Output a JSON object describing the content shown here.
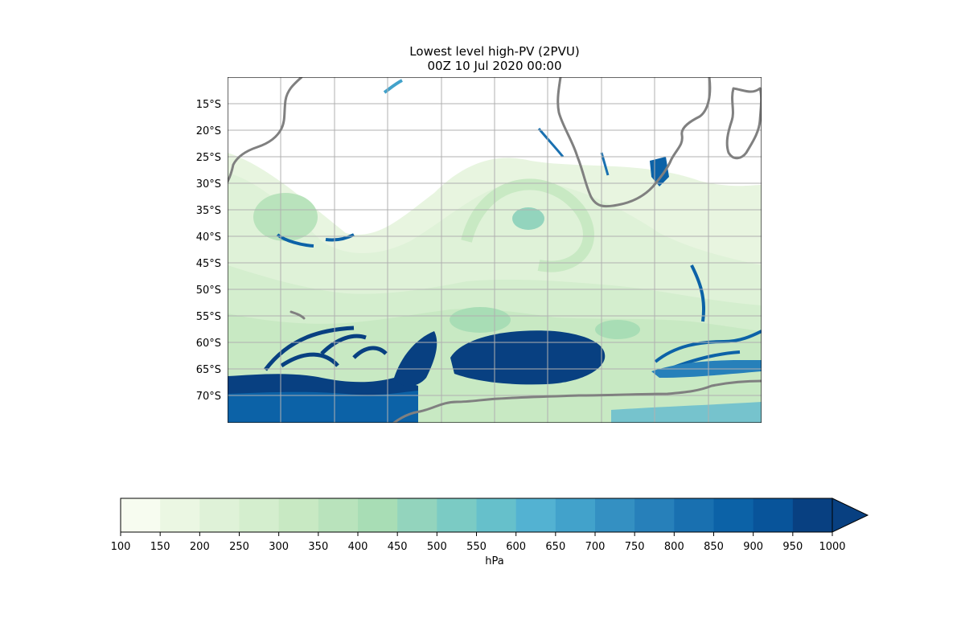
{
  "title": {
    "line1": "Lowest level high-PV (2PVU)",
    "line2": "00Z 10 Jul 2020 00:00"
  },
  "map": {
    "lat_labels": [
      "15°S",
      "20°S",
      "25°S",
      "30°S",
      "35°S",
      "40°S",
      "45°S",
      "50°S",
      "55°S",
      "60°S",
      "65°S",
      "70°S"
    ],
    "coastline_color": "#808080",
    "gridline_color": "#b0b0b0"
  },
  "colorbar": {
    "unit": "hPa",
    "ticks": [
      "100",
      "150",
      "200",
      "250",
      "300",
      "350",
      "400",
      "450",
      "500",
      "550",
      "600",
      "650",
      "700",
      "750",
      "800",
      "850",
      "900",
      "950",
      "1000"
    ],
    "colors": [
      "#f7fcf0",
      "#ebf7e3",
      "#dff2d8",
      "#d4eece",
      "#c8e9c3",
      "#b9e3bc",
      "#a8ddb5",
      "#93d4bd",
      "#7bcbc4",
      "#66c0cb",
      "#53b2d2",
      "#42a2cb",
      "#3490c2",
      "#2780ba",
      "#1970b0",
      "#0c62a7",
      "#08549a",
      "#084081"
    ],
    "extend": "max"
  }
}
